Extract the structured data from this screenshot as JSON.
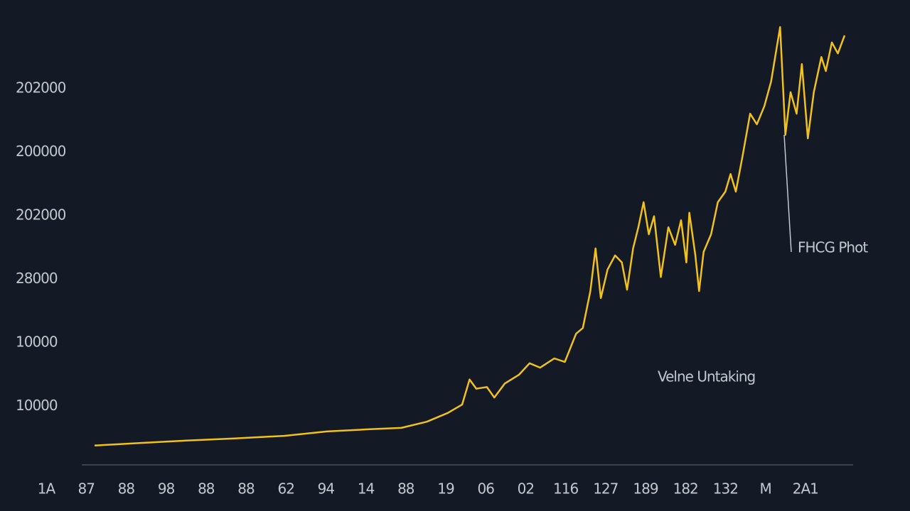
{
  "chart_data": {
    "type": "line",
    "y_labels": [
      "202000",
      "200000",
      "202000",
      "28000",
      "10000",
      "10000"
    ],
    "categories_labels": [
      "1A",
      "87",
      "88",
      "98",
      "88",
      "88",
      "62",
      "94",
      "14",
      "88",
      "19",
      "06",
      "02",
      "116",
      "127",
      "189",
      "182",
      "132",
      "M",
      "2A1"
    ],
    "annotations": [
      "FHCG Phot",
      "Velne Untaking"
    ],
    "xlim": [
      0,
      100
    ],
    "ylim": [
      0,
      100
    ],
    "series": [
      {
        "color": "#f2c21b",
        "x": [
          0,
          6.4,
          12.0,
          18.7,
          25.3,
          31.0,
          36.7,
          40.9,
          44.3,
          47.1,
          49.0,
          50.0,
          50.9,
          52.3,
          53.3,
          54.7,
          56.6,
          58.0,
          59.4,
          61.3,
          62.7,
          64.2,
          65.1,
          66.1,
          66.8,
          67.5,
          68.4,
          69.4,
          70.3,
          71.0,
          71.8,
          72.5,
          73.2,
          73.9,
          74.6,
          75.5,
          76.5,
          77.4,
          78.2,
          78.9,
          79.3,
          80.1,
          80.6,
          81.2,
          82.2,
          83.1,
          84.1,
          84.8,
          85.5,
          86.4,
          87.4,
          88.3,
          89.3,
          90.2,
          91.4,
          92.1,
          92.8,
          93.6,
          94.3,
          95.1,
          95.9,
          96.9,
          97.5,
          98.3,
          99.1,
          100
        ],
        "values": [
          4.4,
          5.0,
          5.5,
          6.0,
          6.6,
          7.6,
          8.1,
          8.4,
          9.8,
          11.8,
          13.7,
          19.4,
          17.3,
          17.7,
          15.3,
          18.5,
          20.5,
          23.1,
          22.1,
          24.2,
          23.4,
          29.8,
          31.1,
          39.5,
          49.2,
          37.9,
          44.4,
          47.6,
          46.0,
          39.8,
          49.2,
          54.0,
          59.7,
          52.4,
          56.5,
          42.7,
          54.0,
          50.0,
          55.6,
          46.0,
          57.3,
          47.6,
          39.5,
          48.4,
          52.4,
          59.7,
          62.1,
          66.1,
          62.1,
          70.2,
          79.8,
          77.4,
          81.5,
          87.1,
          99.5,
          75.0,
          84.7,
          79.8,
          91.1,
          74.2,
          84.7,
          92.7,
          89.5,
          96.0,
          93.5,
          97.6
        ]
      }
    ]
  }
}
